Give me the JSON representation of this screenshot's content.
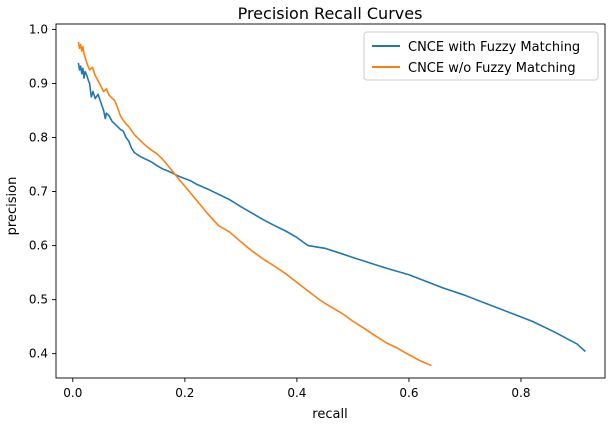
{
  "chart_data": {
    "type": "line",
    "title": "Precision Recall Curves",
    "xlabel": "recall",
    "ylabel": "precision",
    "xlim": [
      -0.03,
      0.95
    ],
    "ylim": [
      0.355,
      1.01
    ],
    "xticks": [
      0.0,
      0.2,
      0.4,
      0.6,
      0.8
    ],
    "xtick_labels": [
      "0.0",
      "0.2",
      "0.4",
      "0.6",
      "0.8"
    ],
    "yticks": [
      0.4,
      0.5,
      0.6,
      0.7,
      0.8,
      0.9,
      1.0
    ],
    "ytick_labels": [
      "0.4",
      "0.5",
      "0.6",
      "0.7",
      "0.8",
      "0.9",
      "1.0"
    ],
    "grid": false,
    "legend_position": "top-right",
    "series": [
      {
        "name": "CNCE with Fuzzy Matching",
        "color": "#1f77b4",
        "x": [
          0.01,
          0.012,
          0.014,
          0.016,
          0.018,
          0.02,
          0.022,
          0.025,
          0.028,
          0.03,
          0.033,
          0.036,
          0.04,
          0.045,
          0.05,
          0.055,
          0.058,
          0.06,
          0.065,
          0.07,
          0.075,
          0.08,
          0.085,
          0.09,
          0.095,
          0.1,
          0.105,
          0.11,
          0.12,
          0.13,
          0.14,
          0.15,
          0.16,
          0.17,
          0.18,
          0.19,
          0.2,
          0.21,
          0.22,
          0.24,
          0.26,
          0.28,
          0.3,
          0.32,
          0.34,
          0.36,
          0.38,
          0.4,
          0.42,
          0.45,
          0.48,
          0.5,
          0.53,
          0.56,
          0.6,
          0.63,
          0.66,
          0.7,
          0.74,
          0.78,
          0.82,
          0.86,
          0.9,
          0.915
        ],
        "y": [
          0.938,
          0.925,
          0.932,
          0.918,
          0.928,
          0.91,
          0.922,
          0.915,
          0.905,
          0.9,
          0.875,
          0.885,
          0.872,
          0.88,
          0.865,
          0.85,
          0.835,
          0.845,
          0.84,
          0.83,
          0.825,
          0.82,
          0.815,
          0.812,
          0.8,
          0.793,
          0.78,
          0.772,
          0.765,
          0.76,
          0.755,
          0.748,
          0.742,
          0.738,
          0.733,
          0.728,
          0.724,
          0.72,
          0.714,
          0.705,
          0.695,
          0.685,
          0.672,
          0.66,
          0.648,
          0.637,
          0.627,
          0.615,
          0.6,
          0.595,
          0.585,
          0.578,
          0.568,
          0.558,
          0.546,
          0.534,
          0.522,
          0.508,
          0.492,
          0.476,
          0.46,
          0.44,
          0.418,
          0.404
        ]
      },
      {
        "name": "CNCE w/o Fuzzy Matching",
        "color": "#ff7f0e",
        "x": [
          0.01,
          0.012,
          0.014,
          0.016,
          0.018,
          0.02,
          0.023,
          0.026,
          0.03,
          0.035,
          0.04,
          0.045,
          0.05,
          0.055,
          0.06,
          0.065,
          0.07,
          0.075,
          0.08,
          0.085,
          0.09,
          0.095,
          0.1,
          0.11,
          0.12,
          0.13,
          0.14,
          0.15,
          0.16,
          0.17,
          0.18,
          0.19,
          0.2,
          0.22,
          0.24,
          0.26,
          0.28,
          0.3,
          0.32,
          0.34,
          0.36,
          0.38,
          0.4,
          0.42,
          0.44,
          0.46,
          0.48,
          0.5,
          0.52,
          0.54,
          0.56,
          0.58,
          0.6,
          0.62,
          0.64
        ],
        "y": [
          0.977,
          0.965,
          0.972,
          0.96,
          0.968,
          0.955,
          0.945,
          0.935,
          0.925,
          0.93,
          0.915,
          0.905,
          0.895,
          0.885,
          0.89,
          0.878,
          0.873,
          0.868,
          0.855,
          0.84,
          0.832,
          0.825,
          0.82,
          0.805,
          0.795,
          0.785,
          0.777,
          0.77,
          0.76,
          0.748,
          0.735,
          0.722,
          0.71,
          0.685,
          0.66,
          0.637,
          0.625,
          0.607,
          0.59,
          0.575,
          0.562,
          0.548,
          0.532,
          0.516,
          0.5,
          0.487,
          0.475,
          0.46,
          0.447,
          0.433,
          0.42,
          0.41,
          0.398,
          0.387,
          0.378
        ]
      }
    ]
  }
}
